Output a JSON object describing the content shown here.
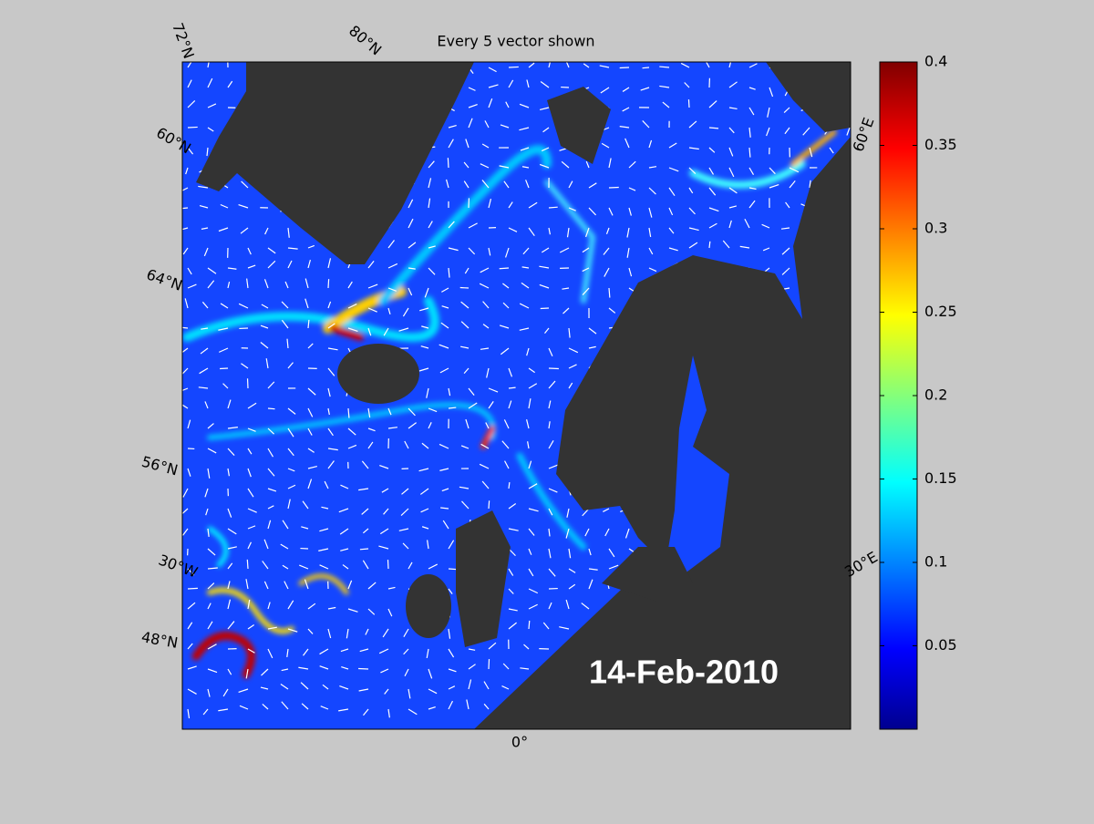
{
  "title": "Every 5 vector shown",
  "date_label": "14-Feb-2010",
  "graticule_labels": [
    "72°N",
    "80°N",
    "60°N",
    "64°N",
    "56°N",
    "30°W",
    "48°N",
    "0°",
    "60°E",
    "30°E"
  ],
  "colorbar": {
    "lim": [
      0,
      0.4
    ],
    "ticks": [
      0.05,
      0.1,
      0.15,
      0.2,
      0.25,
      0.3,
      0.35,
      0.4
    ]
  }
}
